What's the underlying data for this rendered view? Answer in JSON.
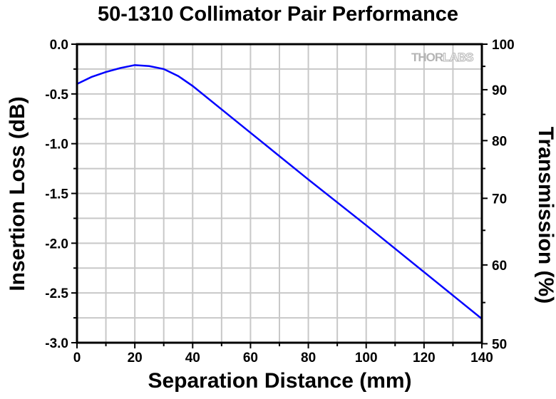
{
  "chart_data": {
    "type": "line",
    "title": "50-1310 Collimator Pair Performance",
    "xlabel": "Separation Distance (mm)",
    "ylabel": "Insertion Loss (dB)",
    "y2label": "Transmission (%)",
    "xlim": [
      0,
      140
    ],
    "ylim": [
      -3.0,
      0.0
    ],
    "y2_ticks": [
      100,
      90,
      80,
      70,
      60,
      50
    ],
    "x_ticks": [
      0,
      20,
      40,
      60,
      80,
      100,
      120,
      140
    ],
    "y_ticks": [
      0.0,
      -0.5,
      -1.0,
      -1.5,
      -2.0,
      -2.5,
      -3.0
    ],
    "grid": true,
    "line_color": "#0000ff",
    "series": [
      {
        "x": [
          0,
          5,
          10,
          15,
          20,
          25,
          30,
          35,
          40,
          60,
          80,
          100,
          120,
          140
        ],
        "y": [
          -0.4,
          -0.33,
          -0.28,
          -0.24,
          -0.21,
          -0.22,
          -0.25,
          -0.32,
          -0.42,
          -0.89,
          -1.36,
          -1.82,
          -2.29,
          -2.76
        ]
      }
    ]
  },
  "logo": {
    "part1": "THOR",
    "part2": "LABS"
  }
}
